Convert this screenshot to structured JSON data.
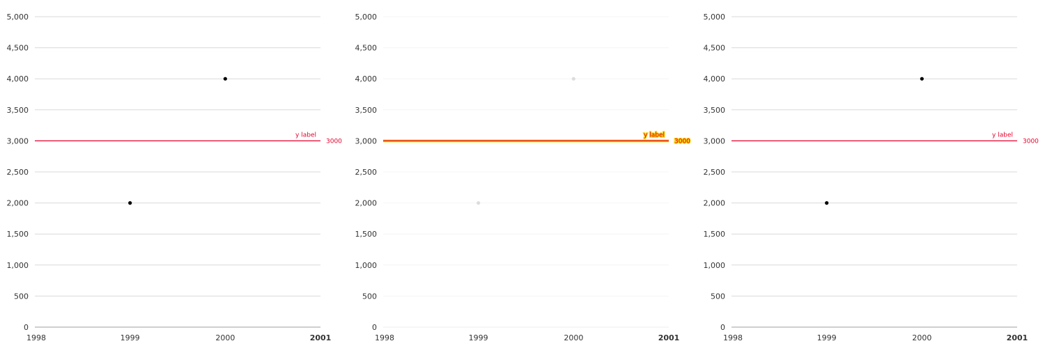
{
  "chart_data": [
    {
      "type": "scatter",
      "panel": "left",
      "state": "normal",
      "title": "",
      "xlabel": "",
      "ylabel": "",
      "x_ticks": [
        "1998",
        "1999",
        "2000",
        "2001"
      ],
      "x_ticks_bold": [
        "2001"
      ],
      "xlim": [
        1998,
        2001
      ],
      "y_ticks": [
        "0",
        "500",
        "1,000",
        "1,500",
        "2,000",
        "2,500",
        "3,000",
        "3,500",
        "4,000",
        "4,500",
        "5,000"
      ],
      "ylim": [
        0,
        5000
      ],
      "grid": true,
      "points": [
        {
          "x": 1999,
          "y": 2000
        },
        {
          "x": 2000,
          "y": 4000
        }
      ],
      "reference_line": {
        "y": 3000,
        "label": "y label",
        "value_label": "3000",
        "color": "#e4002b"
      }
    },
    {
      "type": "scatter",
      "panel": "center",
      "state": "faded-highlighted-reference",
      "title": "",
      "xlabel": "",
      "ylabel": "",
      "x_ticks": [
        "1998",
        "1999",
        "2000",
        "2001"
      ],
      "x_ticks_bold": [
        "2001"
      ],
      "xlim": [
        1998,
        2001
      ],
      "y_ticks": [
        "0",
        "500",
        "1,000",
        "1,500",
        "2,000",
        "2,500",
        "3,000",
        "3,500",
        "4,000",
        "4,500",
        "5,000"
      ],
      "ylim": [
        0,
        5000
      ],
      "grid": true,
      "points": [
        {
          "x": 1999,
          "y": 2000
        },
        {
          "x": 2000,
          "y": 4000
        }
      ],
      "reference_line": {
        "y": 3000,
        "label": "y label",
        "value_label": "3000",
        "color": "#e4002b",
        "highlight_color": "#f5d000"
      }
    },
    {
      "type": "scatter",
      "panel": "right",
      "state": "normal",
      "title": "",
      "xlabel": "",
      "ylabel": "",
      "x_ticks": [
        "1998",
        "1999",
        "2000",
        "2001"
      ],
      "x_ticks_bold": [
        "2001"
      ],
      "xlim": [
        1998,
        2001
      ],
      "y_ticks": [
        "0",
        "500",
        "1,000",
        "1,500",
        "2,000",
        "2,500",
        "3,000",
        "3,500",
        "4,000",
        "4,500",
        "5,000"
      ],
      "ylim": [
        0,
        5000
      ],
      "grid": true,
      "points": [
        {
          "x": 1999,
          "y": 2000
        },
        {
          "x": 2000,
          "y": 4000
        }
      ],
      "reference_line": {
        "y": 3000,
        "label": "y label",
        "value_label": "3000",
        "color": "#e4002b"
      }
    }
  ],
  "colors": {
    "grid": "#d9d9d9",
    "axis": "#bfbfbf",
    "tick_text": "#333333",
    "point": "#000000",
    "faded_text": "#e6e6e6",
    "faded_grid": "#f4f4f4",
    "faded_point": "#dddddd"
  }
}
